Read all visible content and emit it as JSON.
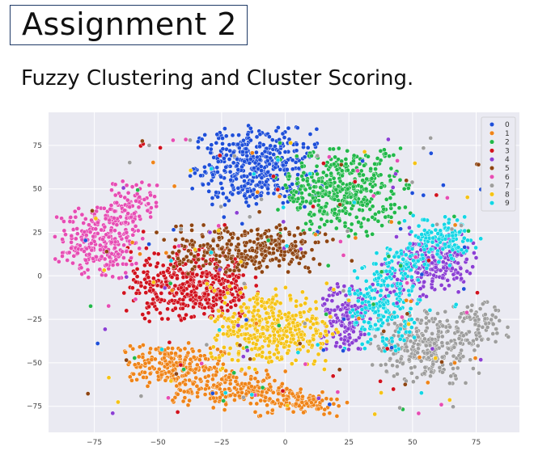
{
  "slide": {
    "title": "Assignment 2",
    "subtitle": "Fuzzy Clustering and Cluster Scoring."
  },
  "chart_data": {
    "type": "scatter",
    "title": "",
    "xlabel": "",
    "ylabel": "",
    "xlim": [
      -93,
      92
    ],
    "ylim": [
      -90,
      94
    ],
    "xticks": [
      "−75",
      "−50",
      "−25",
      "0",
      "25",
      "50",
      "75"
    ],
    "xtick_values": [
      -75,
      -50,
      -25,
      0,
      25,
      50,
      75
    ],
    "yticks": [
      "75",
      "50",
      "25",
      "0",
      "−25",
      "−50",
      "−75"
    ],
    "ytick_values": [
      75,
      50,
      25,
      0,
      -25,
      -50,
      -75
    ],
    "grid": true,
    "legend_position": "top-right",
    "series": [
      {
        "name": "0",
        "color": "#1f4fd9",
        "clusters": [
          {
            "cx": -12,
            "cy": 63,
            "sx": 12,
            "sy": 11,
            "n": 430
          }
        ]
      },
      {
        "name": "1",
        "color": "#ef8419",
        "clusters": [
          {
            "cx": -45,
            "cy": -51,
            "sx": 10,
            "sy": 6,
            "n": 200
          },
          {
            "cx": -22,
            "cy": -65,
            "sx": 11,
            "sy": 5,
            "n": 180
          },
          {
            "cx": 5,
            "cy": -72,
            "sx": 9,
            "sy": 4,
            "n": 120
          }
        ]
      },
      {
        "name": "2",
        "color": "#22b84a",
        "clusters": [
          {
            "cx": 23,
            "cy": 48,
            "sx": 12,
            "sy": 12,
            "n": 420
          }
        ]
      },
      {
        "name": "3",
        "color": "#d1121e",
        "clusters": [
          {
            "cx": -37,
            "cy": -5,
            "sx": 12,
            "sy": 10,
            "n": 430
          }
        ]
      },
      {
        "name": "4",
        "color": "#8b3fd4",
        "clusters": [
          {
            "cx": 23,
            "cy": -22,
            "sx": 5,
            "sy": 10,
            "n": 140
          },
          {
            "cx": 60,
            "cy": 8,
            "sx": 7,
            "sy": 9,
            "n": 180
          },
          {
            "cx": 45,
            "cy": -5,
            "sx": 5,
            "sy": 6,
            "n": 60
          }
        ]
      },
      {
        "name": "5",
        "color": "#8e4513",
        "clusters": [
          {
            "cx": -15,
            "cy": 15,
            "sx": 16,
            "sy": 7,
            "n": 300
          }
        ]
      },
      {
        "name": "6",
        "color": "#e64db4",
        "clusters": [
          {
            "cx": -73,
            "cy": 20,
            "sx": 8,
            "sy": 10,
            "n": 260
          },
          {
            "cx": -60,
            "cy": 42,
            "sx": 5,
            "sy": 7,
            "n": 80
          }
        ]
      },
      {
        "name": "7",
        "color": "#9e9e9e",
        "clusters": [
          {
            "cx": 55,
            "cy": -40,
            "sx": 10,
            "sy": 10,
            "n": 300
          },
          {
            "cx": 75,
            "cy": -28,
            "sx": 6,
            "sy": 6,
            "n": 80
          }
        ]
      },
      {
        "name": "8",
        "color": "#f5c316",
        "clusters": [
          {
            "cx": -5,
            "cy": -30,
            "sx": 12,
            "sy": 11,
            "n": 400
          }
        ]
      },
      {
        "name": "9",
        "color": "#14d6e5",
        "clusters": [
          {
            "cx": 38,
            "cy": -18,
            "sx": 7,
            "sy": 12,
            "n": 200
          },
          {
            "cx": 62,
            "cy": 20,
            "sx": 7,
            "sy": 7,
            "n": 120
          },
          {
            "cx": 45,
            "cy": 8,
            "sx": 5,
            "sy": 5,
            "n": 60
          }
        ]
      }
    ]
  }
}
